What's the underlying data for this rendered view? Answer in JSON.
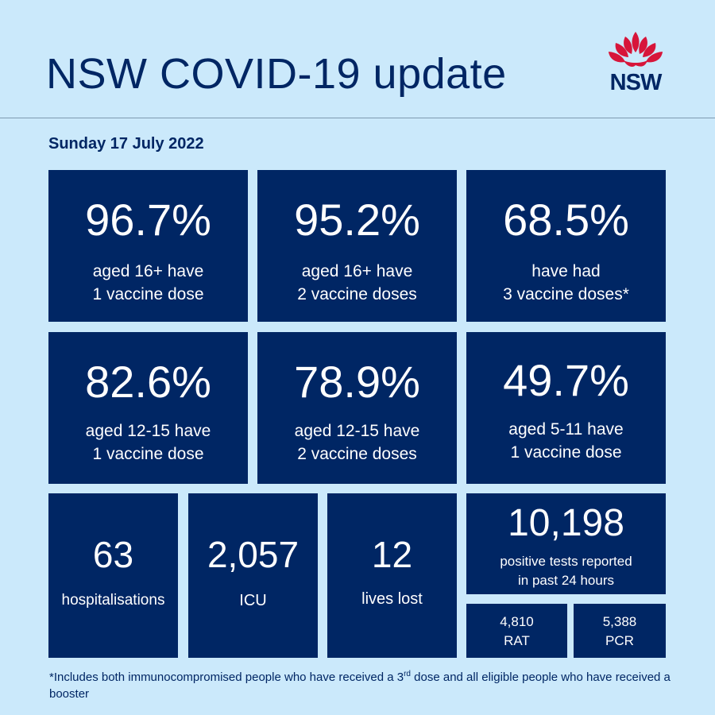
{
  "header": {
    "title": "NSW COVID-19 update",
    "logo_text": "NSW",
    "logo_color": "#d7153a"
  },
  "date": "Sunday 17 July 2022",
  "colors": {
    "tile": "#002664",
    "background": "#cbe9fb",
    "text": "#002664"
  },
  "vaccine_tiles": [
    {
      "value": "96.7%",
      "line1": "aged 16+ have",
      "line2": "1 vaccine dose"
    },
    {
      "value": "95.2%",
      "line1": "aged 16+ have",
      "line2": "2 vaccine doses"
    },
    {
      "value": "68.5%",
      "line1": "have had",
      "line2": "3 vaccine doses*"
    },
    {
      "value": "82.6%",
      "line1": "aged 12-15 have",
      "line2": "1 vaccine dose"
    },
    {
      "value": "78.9%",
      "line1": "aged 12-15 have",
      "line2": "2 vaccine doses"
    },
    {
      "value": "49.7%",
      "line1": "aged 5-11 have",
      "line2": "1 vaccine dose"
    }
  ],
  "stats": [
    {
      "value": "63",
      "label": "hospitalisations"
    },
    {
      "value": "2,057",
      "label": "ICU"
    },
    {
      "value": "12",
      "label": "lives lost"
    }
  ],
  "positive": {
    "value": "10,198",
    "line1": "positive tests reported",
    "line2": "in past 24 hours",
    "rat": {
      "value": "4,810",
      "label": "RAT"
    },
    "pcr": {
      "value": "5,388",
      "label": "PCR"
    }
  },
  "footnote": {
    "part1": "*Includes both immunocompromised people who have received a 3",
    "sup": "rd",
    "part2": " dose and all eligible people who have received a booster"
  }
}
